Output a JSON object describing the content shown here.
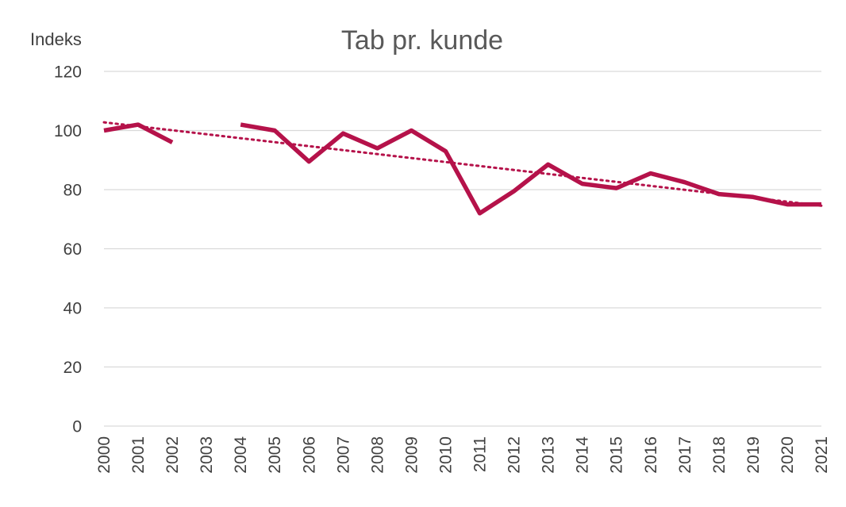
{
  "chart_data": {
    "type": "line",
    "title": "Tab pr. kunde",
    "xlabel": "",
    "ylabel": "Indeks",
    "categories": [
      "2000",
      "2001",
      "2002",
      "2003",
      "2004",
      "2005",
      "2006",
      "2007",
      "2008",
      "2009",
      "2010",
      "2011",
      "2012",
      "2013",
      "2014",
      "2015",
      "2016",
      "2017",
      "2018",
      "2019",
      "2020",
      "2021"
    ],
    "ylim": [
      0,
      120
    ],
    "yticks": [
      0,
      20,
      40,
      60,
      80,
      100,
      120
    ],
    "grid": true,
    "legend": "none",
    "series": [
      {
        "values": [
          100,
          102,
          96,
          null,
          102,
          100,
          89.5,
          99,
          94,
          100,
          93,
          72,
          79.5,
          88.5,
          82,
          80.5,
          85.5,
          82.5,
          78.5,
          77.5,
          75,
          75
        ],
        "color": "#b5124a"
      }
    ],
    "trendline": {
      "type": "linear",
      "style": "dotted",
      "color": "#b5124a"
    }
  }
}
